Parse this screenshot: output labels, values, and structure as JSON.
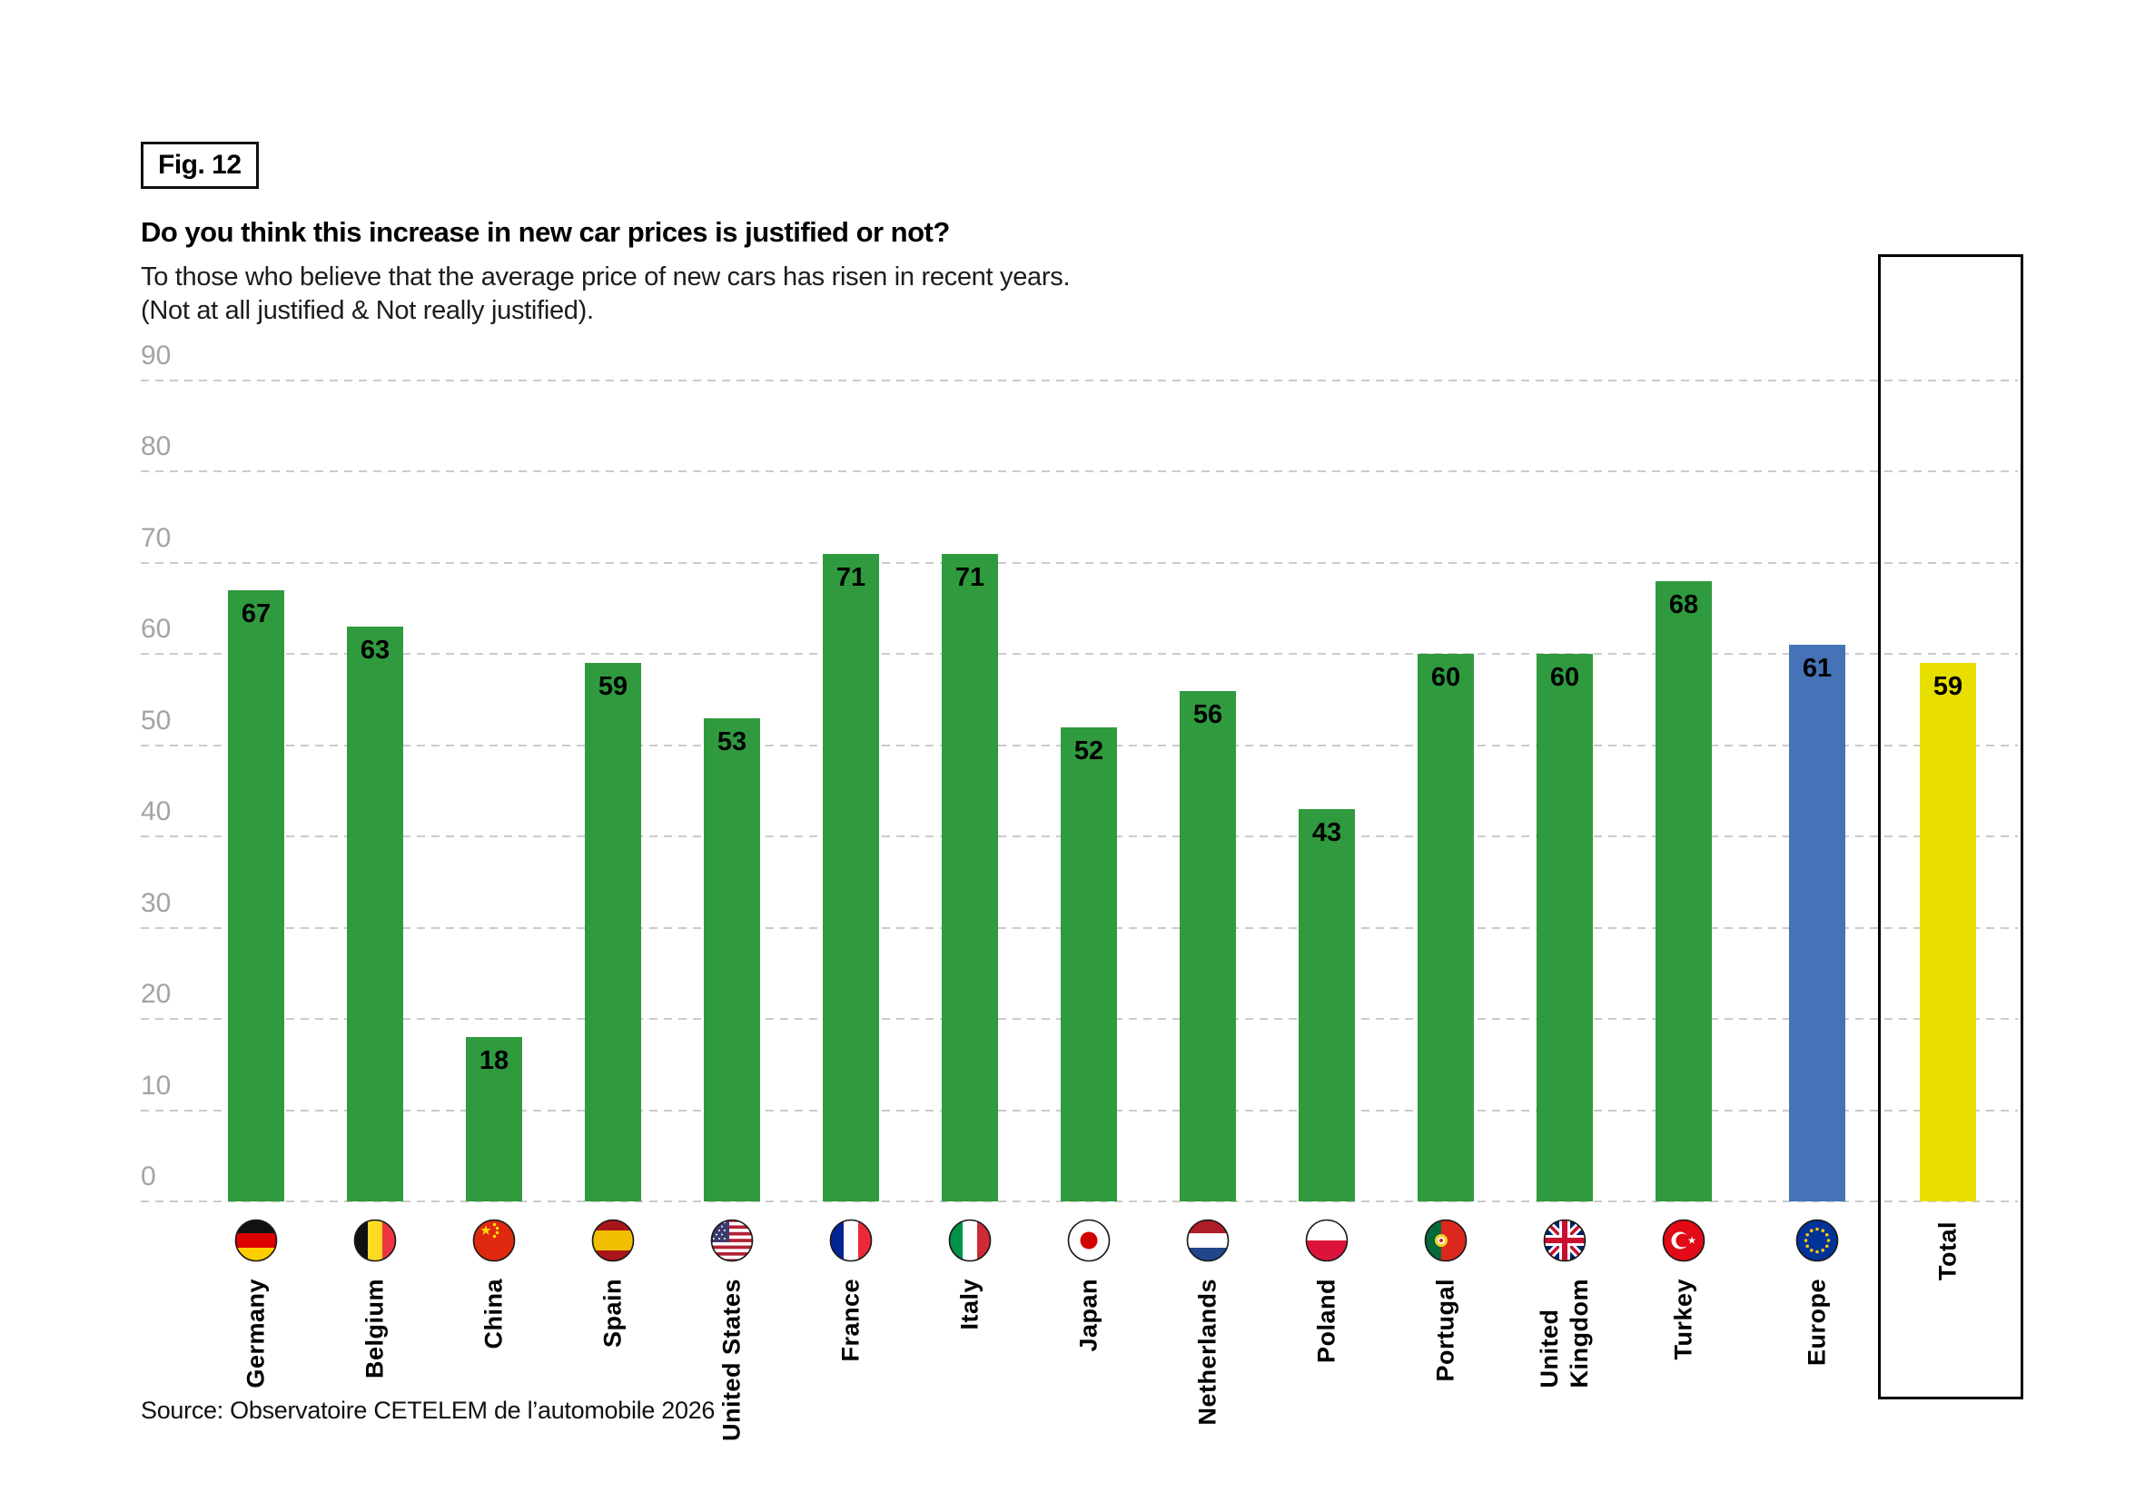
{
  "figure": {
    "badge": "Fig. 12",
    "title": "Do you think this increase in new car prices is justified or not?",
    "subtitle": "To those who believe that the average price of new cars has risen in recent years.\n(Not at all justified & Not really justified).",
    "source": "Source: Observatoire CETELEM de l’automobile 2026"
  },
  "colors": {
    "bar_green": "#2f9b3e",
    "bar_blue": "#4673b8",
    "bar_yellow": "#e8df00",
    "gridline_gray": "#cbcbcb",
    "axis_label_gray": "#a3a3a3",
    "text_black": "#000000"
  },
  "chart_data": {
    "type": "bar",
    "title": "Do you think this increase in new car prices is justified or not?",
    "subtitle": "To those who believe that the average price of new cars has risen in recent years. (Not at all justified & Not really justified).",
    "xlabel": "",
    "ylabel": "",
    "ylim": [
      0,
      90
    ],
    "yticks": [
      0,
      10,
      20,
      30,
      40,
      50,
      60,
      70,
      80,
      90
    ],
    "grid": "horizontal dashed",
    "legend": "none",
    "categories": [
      "Germany",
      "Belgium",
      "China",
      "Spain",
      "United States",
      "France",
      "Italy",
      "Japan",
      "Netherlands",
      "Poland",
      "Portugal",
      "United\nKingdom",
      "Turkey",
      "Europe",
      "Total"
    ],
    "values": [
      67,
      63,
      18,
      59,
      53,
      71,
      71,
      52,
      56,
      43,
      60,
      60,
      68,
      61,
      59
    ],
    "columns": [
      {
        "label": "Germany",
        "value": 67,
        "color_key": "bar_green",
        "flag": "germany-flag",
        "boxed": false
      },
      {
        "label": "Belgium",
        "value": 63,
        "color_key": "bar_green",
        "flag": "belgium-flag",
        "boxed": false
      },
      {
        "label": "China",
        "value": 18,
        "color_key": "bar_green",
        "flag": "china-flag",
        "boxed": false
      },
      {
        "label": "Spain",
        "value": 59,
        "color_key": "bar_green",
        "flag": "spain-flag",
        "boxed": false
      },
      {
        "label": "United States",
        "value": 53,
        "color_key": "bar_green",
        "flag": "united-states-flag",
        "boxed": false
      },
      {
        "label": "France",
        "value": 71,
        "color_key": "bar_green",
        "flag": "france-flag",
        "boxed": false
      },
      {
        "label": "Italy",
        "value": 71,
        "color_key": "bar_green",
        "flag": "italy-flag",
        "boxed": false
      },
      {
        "label": "Japan",
        "value": 52,
        "color_key": "bar_green",
        "flag": "japan-flag",
        "boxed": false
      },
      {
        "label": "Netherlands",
        "value": 56,
        "color_key": "bar_green",
        "flag": "netherlands-flag",
        "boxed": false
      },
      {
        "label": "Poland",
        "value": 43,
        "color_key": "bar_green",
        "flag": "poland-flag",
        "boxed": false
      },
      {
        "label": "Portugal",
        "value": 60,
        "color_key": "bar_green",
        "flag": "portugal-flag",
        "boxed": false
      },
      {
        "label": "United\nKingdom",
        "value": 60,
        "color_key": "bar_green",
        "flag": "united-kingdom-flag",
        "boxed": false
      },
      {
        "label": "Turkey",
        "value": 68,
        "color_key": "bar_green",
        "flag": "turkey-flag",
        "boxed": false
      },
      {
        "label": "Europe",
        "value": 61,
        "color_key": "bar_blue",
        "flag": "europe-flag",
        "boxed": false
      },
      {
        "label": "Total",
        "value": 59,
        "color_key": "bar_yellow",
        "flag": null,
        "boxed": true
      }
    ]
  }
}
